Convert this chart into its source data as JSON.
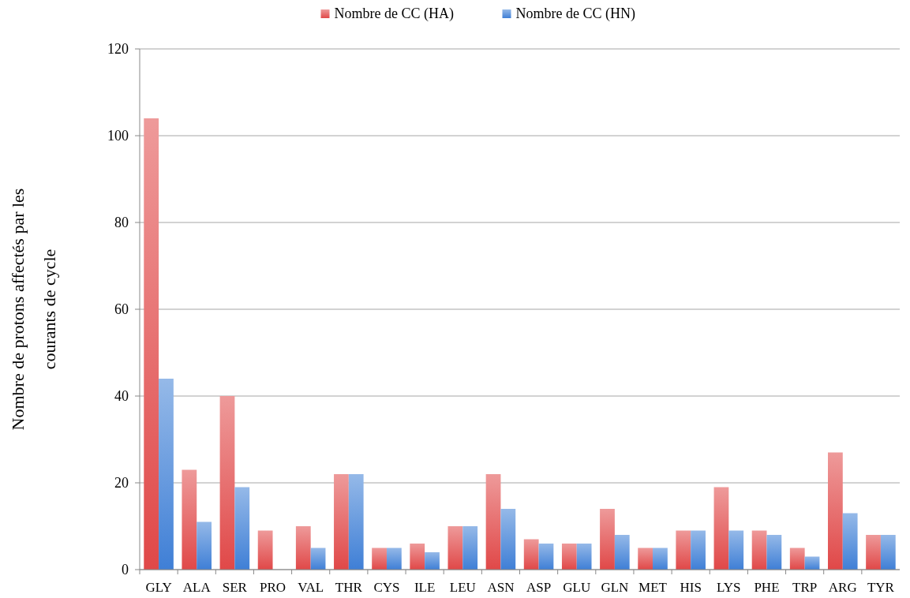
{
  "chart_data": {
    "type": "bar",
    "ylabel": "Nombre de protons affectés par les courants de cycle",
    "categories": [
      "GLY",
      "ALA",
      "SER",
      "PRO",
      "VAL",
      "THR",
      "CYS",
      "ILE",
      "LEU",
      "ASN",
      "ASP",
      "GLU",
      "GLN",
      "MET",
      "HIS",
      "LYS",
      "PHE",
      "TRP",
      "ARG",
      "TYR"
    ],
    "series": [
      {
        "name": "Nombre de CC (HA)",
        "color": "#e04848",
        "values": [
          104,
          23,
          40,
          9,
          10,
          22,
          5,
          6,
          10,
          22,
          7,
          6,
          14,
          5,
          9,
          19,
          9,
          5,
          27,
          8
        ]
      },
      {
        "name": "Nombre de CC (HN)",
        "color": "#3f7fd6",
        "values": [
          44,
          11,
          19,
          0,
          5,
          22,
          5,
          4,
          10,
          14,
          6,
          6,
          8,
          5,
          9,
          9,
          8,
          3,
          13,
          8
        ]
      }
    ],
    "ylim": [
      0,
      120
    ],
    "yticks": [
      0,
      20,
      40,
      60,
      80,
      100,
      120
    ],
    "grid": "y",
    "legend": "top"
  }
}
